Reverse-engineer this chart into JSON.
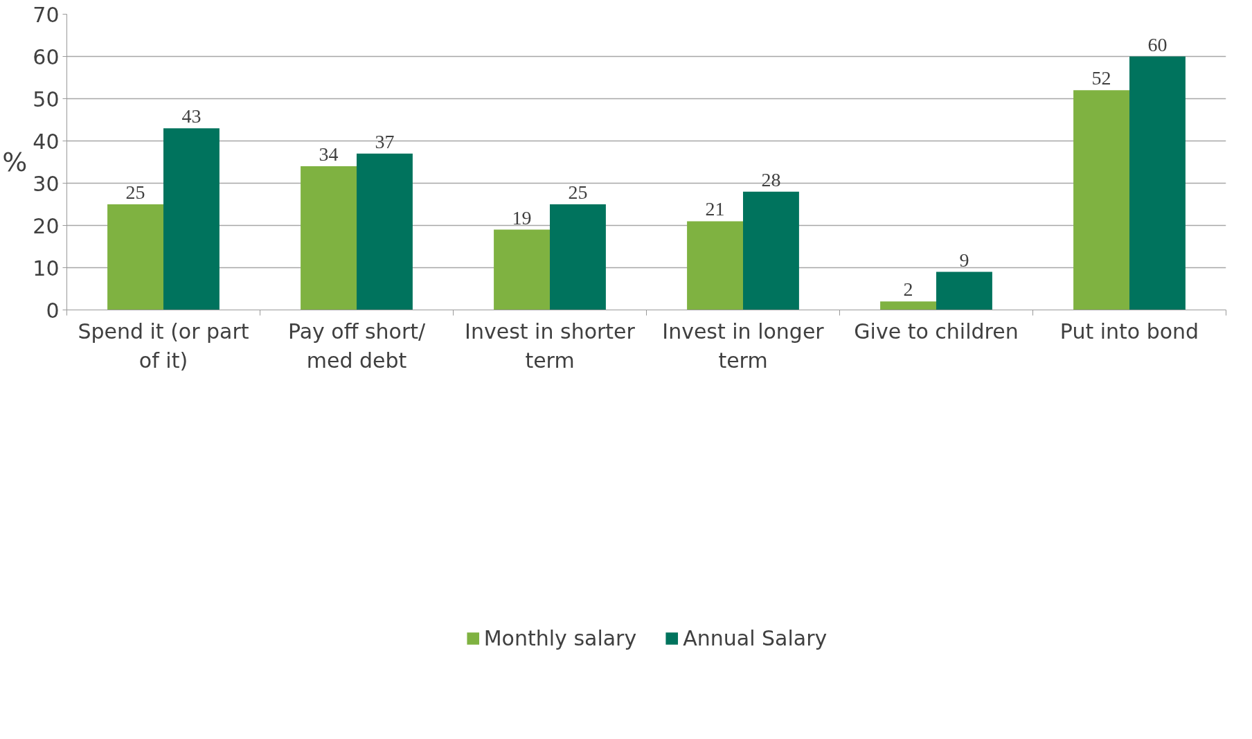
{
  "chart_data": {
    "type": "bar",
    "ylabel": "%",
    "categories": [
      "Spend it (or part of it)",
      "Pay off short/ med debt",
      "Invest in shorter term",
      "Invest in longer term",
      "Give to children",
      "Put into bond"
    ],
    "series": [
      {
        "name": "Monthly salary",
        "color": "#7fb241",
        "values": [
          25,
          34,
          19,
          21,
          2,
          52
        ]
      },
      {
        "name": "Annual Salary",
        "color": "#00735d",
        "values": [
          43,
          37,
          25,
          28,
          9,
          60
        ]
      }
    ],
    "ylim": [
      0,
      70
    ],
    "yticks": [
      0,
      10,
      20,
      30,
      40,
      50,
      60,
      70
    ],
    "grid": "y",
    "legend": "bottom",
    "data_labels": true
  }
}
